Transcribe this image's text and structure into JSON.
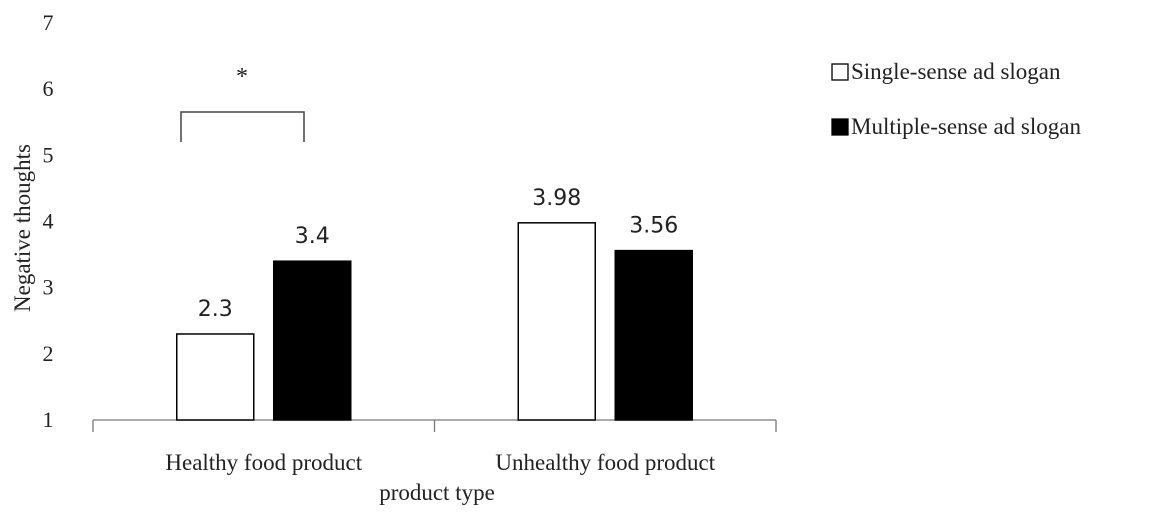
{
  "chart_data": {
    "type": "bar",
    "categories": [
      "Healthy food product",
      "Unhealthy food product"
    ],
    "series": [
      {
        "name": "Single-sense ad slogan",
        "values": [
          2.3,
          3.98
        ],
        "labels": [
          "2.3",
          "3.98"
        ],
        "fill": "#ffffff",
        "stroke": "#000000"
      },
      {
        "name": "Multiple-sense ad slogan",
        "values": [
          3.4,
          3.56
        ],
        "labels": [
          "3.4",
          "3.56"
        ],
        "fill": "#000000",
        "stroke": "#000000"
      }
    ],
    "xlabel": "product type",
    "ylabel": "Negative thoughts",
    "ylim": [
      1,
      7
    ],
    "yticks": [
      "1",
      "2",
      "3",
      "4",
      "5",
      "6",
      "7"
    ],
    "grid": false,
    "legend_position": "top-right",
    "annotation": {
      "text": "*",
      "category": "Healthy food product"
    }
  }
}
